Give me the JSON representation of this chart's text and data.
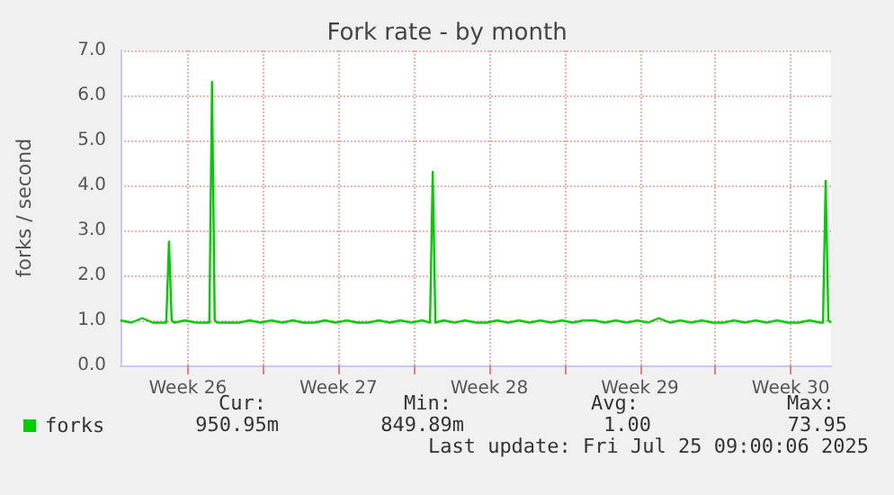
{
  "chart_data": {
    "type": "line",
    "title": "Fork rate - by month",
    "ylabel": "forks / second",
    "xlim": [
      "2025-06-22T09:00",
      "2025-07-25T09:00"
    ],
    "xticks": [
      {
        "value": "2025-06-25T12:00",
        "label": "Week 26"
      },
      {
        "value": "2025-06-29T00:00",
        "label": null
      },
      {
        "value": "2025-07-02T12:00",
        "label": "Week 27"
      },
      {
        "value": "2025-07-06T00:00",
        "label": null
      },
      {
        "value": "2025-07-09T12:00",
        "label": "Week 28"
      },
      {
        "value": "2025-07-13T00:00",
        "label": null
      },
      {
        "value": "2025-07-16T12:00",
        "label": "Week 29"
      },
      {
        "value": "2025-07-20T00:00",
        "label": null
      },
      {
        "value": "2025-07-23T12:00",
        "label": "Week 30"
      }
    ],
    "ylim": [
      0,
      7
    ],
    "yticks": [
      {
        "value": 0,
        "label": "0.0"
      },
      {
        "value": 1,
        "label": "1.0"
      },
      {
        "value": 2,
        "label": "2.0"
      },
      {
        "value": 3,
        "label": "3.0"
      },
      {
        "value": 4,
        "label": "4.0"
      },
      {
        "value": 5,
        "label": "5.0"
      },
      {
        "value": 6,
        "label": "6.0"
      },
      {
        "value": 7,
        "label": "7.0"
      }
    ],
    "grid": true,
    "legend": "bottom left",
    "marker": "none",
    "line_style": "solid",
    "annotations": [
      "Cur:",
      "Min:",
      "Avg:",
      "Max:",
      "950.95m",
      "849.89m",
      "1.00",
      "73.95",
      "Last update: Fri Jul 25 09:00:06 2025"
    ],
    "series": [
      {
        "name": "forks",
        "color": "#00cc00",
        "x": [
          "2025-06-22T09:00",
          "2025-06-22T21:00",
          "2025-06-23T09:00",
          "2025-06-23T21:00",
          "2025-06-24T09:00",
          "2025-06-24T12:00",
          "2025-06-24T15:00",
          "2025-06-24T18:00",
          "2025-06-24T21:00",
          "2025-06-25T09:00",
          "2025-06-25T21:00",
          "2025-06-26T09:00",
          "2025-06-26T12:00",
          "2025-06-26T15:00",
          "2025-06-26T18:00",
          "2025-06-26T21:00",
          "2025-06-27T09:00",
          "2025-06-27T21:00",
          "2025-06-28T09:00",
          "2025-06-28T21:00",
          "2025-06-29T09:00",
          "2025-06-29T21:00",
          "2025-06-30T09:00",
          "2025-06-30T21:00",
          "2025-07-01T09:00",
          "2025-07-01T21:00",
          "2025-07-02T09:00",
          "2025-07-02T21:00",
          "2025-07-03T09:00",
          "2025-07-03T21:00",
          "2025-07-04T09:00",
          "2025-07-04T21:00",
          "2025-07-05T09:00",
          "2025-07-05T21:00",
          "2025-07-06T09:00",
          "2025-07-06T18:00",
          "2025-07-06T21:00",
          "2025-07-07T00:00",
          "2025-07-07T09:00",
          "2025-07-07T21:00",
          "2025-07-08T09:00",
          "2025-07-08T21:00",
          "2025-07-09T09:00",
          "2025-07-09T21:00",
          "2025-07-10T09:00",
          "2025-07-10T21:00",
          "2025-07-11T09:00",
          "2025-07-11T21:00",
          "2025-07-12T09:00",
          "2025-07-12T21:00",
          "2025-07-13T09:00",
          "2025-07-13T21:00",
          "2025-07-14T09:00",
          "2025-07-14T21:00",
          "2025-07-15T09:00",
          "2025-07-15T21:00",
          "2025-07-16T09:00",
          "2025-07-16T21:00",
          "2025-07-17T09:00",
          "2025-07-17T21:00",
          "2025-07-18T09:00",
          "2025-07-18T21:00",
          "2025-07-19T09:00",
          "2025-07-19T21:00",
          "2025-07-20T09:00",
          "2025-07-20T21:00",
          "2025-07-21T09:00",
          "2025-07-21T21:00",
          "2025-07-22T09:00",
          "2025-07-22T21:00",
          "2025-07-23T09:00",
          "2025-07-23T21:00",
          "2025-07-24T09:00",
          "2025-07-24T21:00",
          "2025-07-25T00:00",
          "2025-07-25T03:00",
          "2025-07-25T06:00",
          "2025-07-25T09:00"
        ],
        "values": [
          1.0,
          0.95,
          1.05,
          0.95,
          0.95,
          0.95,
          2.75,
          1.0,
          0.95,
          1.0,
          0.95,
          0.95,
          0.95,
          6.3,
          1.0,
          0.95,
          0.95,
          0.95,
          1.0,
          0.95,
          1.0,
          0.95,
          1.0,
          0.95,
          0.95,
          1.0,
          0.95,
          1.0,
          0.95,
          0.95,
          1.0,
          0.95,
          1.0,
          0.95,
          1.0,
          0.95,
          4.3,
          0.95,
          1.0,
          0.95,
          1.0,
          0.95,
          0.95,
          1.0,
          0.95,
          1.0,
          0.95,
          1.0,
          0.95,
          1.0,
          0.95,
          1.0,
          1.0,
          0.95,
          1.0,
          0.95,
          1.0,
          0.95,
          1.05,
          0.95,
          1.0,
          0.95,
          1.0,
          0.95,
          0.95,
          1.0,
          0.95,
          1.0,
          0.95,
          1.0,
          0.95,
          0.95,
          1.0,
          0.95,
          0.95,
          4.1,
          1.0,
          0.95
        ]
      }
    ]
  }
}
